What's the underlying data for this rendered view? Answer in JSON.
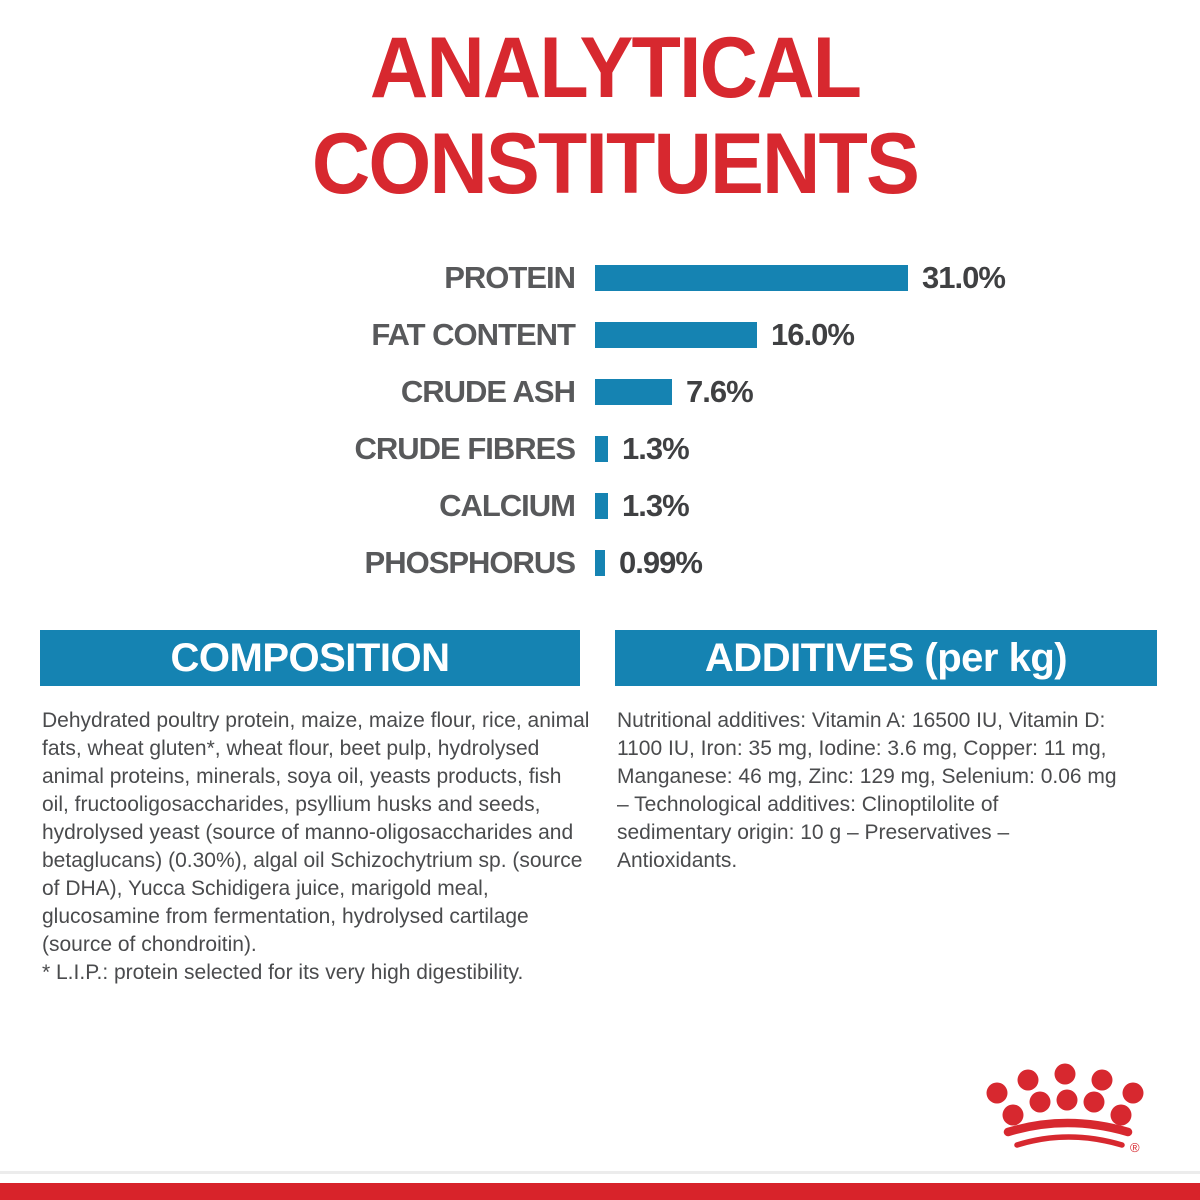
{
  "title": {
    "line1": "ANALYTICAL",
    "line2": "CONSTITUENTS"
  },
  "chart_data": {
    "type": "bar",
    "orientation": "horizontal",
    "title": "ANALYTICAL CONSTITUENTS",
    "categories": [
      "PROTEIN",
      "FAT CONTENT",
      "CRUDE ASH",
      "CRUDE FIBRES",
      "CALCIUM",
      "PHOSPHORUS"
    ],
    "values": [
      31.0,
      16.0,
      7.6,
      1.3,
      1.3,
      0.99
    ],
    "value_labels": [
      "31.0%",
      "16.0%",
      "7.6%",
      "1.3%",
      "1.3%",
      "0.99%"
    ],
    "unit": "%",
    "xlim": [
      0,
      31
    ],
    "grid": false,
    "legend": false,
    "bar_color": "#1583b2"
  },
  "composition": {
    "header": "COMPOSITION",
    "body": "Dehydrated poultry protein, maize, maize flour, rice, animal\nfats, wheat gluten*, wheat flour, beet pulp, hydrolysed\nanimal proteins, minerals, soya oil, yeasts products, fish\noil, fructooligosaccharides, psyllium husks and seeds,\nhydrolysed yeast (source of manno-oligosaccharides and\nbetaglucans) (0.30%), algal oil Schizochytrium sp. (source\nof DHA), Yucca Schidigera juice, marigold meal,\nglucosamine from fermentation, hydrolysed cartilage\n(source of chondroitin).",
    "footnote": "* L.I.P.: protein selected for its very high digestibility."
  },
  "additives": {
    "header": "ADDITIVES (per kg)",
    "body": "Nutritional additives: Vitamin A: 16500 IU, Vitamin D:\n1100 IU, Iron: 35 mg, Iodine: 3.6 mg, Copper: 11 mg,\nManganese: 46 mg, Zinc: 129 mg, Selenium: 0.06 mg\n– Technological additives: Clinoptilolite of\nsedimentary origin: 10 g – Preservatives –\nAntioxidants."
  },
  "footer": {
    "brand_logo": "royal-canin-crown",
    "registered_mark": "®"
  },
  "colors": {
    "accent_red": "#d7282f",
    "bar_blue": "#1583b2",
    "header_blue": "#1583b2",
    "label_gray": "#58595b",
    "value_gray": "#3f4042",
    "body_text_gray": "#4a4b4d",
    "footer_strip_red": "#d8232a"
  }
}
